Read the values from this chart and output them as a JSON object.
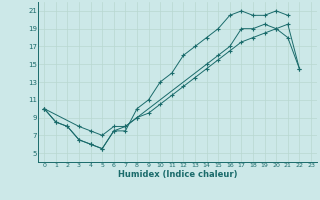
{
  "xlabel": "Humidex (Indice chaleur)",
  "bg_color": "#cce8e8",
  "grid_color": "#d4e8e0",
  "line_color": "#1a6b6b",
  "xlim": [
    -0.5,
    23.5
  ],
  "ylim": [
    4,
    22
  ],
  "xticks": [
    0,
    1,
    2,
    3,
    4,
    5,
    6,
    7,
    8,
    9,
    10,
    11,
    12,
    13,
    14,
    15,
    16,
    17,
    18,
    19,
    20,
    21,
    22,
    23
  ],
  "yticks": [
    5,
    7,
    9,
    11,
    13,
    15,
    17,
    19,
    21
  ],
  "line1_x": [
    0,
    1,
    2,
    3,
    4,
    5,
    6,
    7,
    8,
    9,
    10,
    11,
    12,
    13,
    14,
    15,
    16,
    17,
    18,
    19,
    20,
    21
  ],
  "line1_y": [
    10,
    8.5,
    8,
    6.5,
    6,
    5.5,
    7.5,
    7.5,
    10,
    11,
    13,
    14,
    16,
    17,
    18,
    19,
    20.5,
    21,
    20.5,
    20.5,
    21,
    20.5
  ],
  "line2_x": [
    0,
    1,
    2,
    3,
    4,
    5,
    6,
    7,
    8,
    14,
    15,
    16,
    17,
    18,
    19,
    20,
    21,
    22
  ],
  "line2_y": [
    10,
    8.5,
    8,
    6.5,
    6,
    5.5,
    7.5,
    8,
    9,
    15,
    16,
    17,
    19,
    19,
    19.5,
    19,
    18,
    14.5
  ],
  "line3_x": [
    0,
    3,
    4,
    5,
    6,
    7,
    8,
    9,
    10,
    11,
    12,
    13,
    14,
    15,
    16,
    17,
    18,
    19,
    20,
    21,
    22
  ],
  "line3_y": [
    10,
    8,
    7.5,
    7,
    8,
    8,
    9,
    9.5,
    10.5,
    11.5,
    12.5,
    13.5,
    14.5,
    15.5,
    16.5,
    17.5,
    18,
    18.5,
    19,
    19.5,
    14.5
  ]
}
